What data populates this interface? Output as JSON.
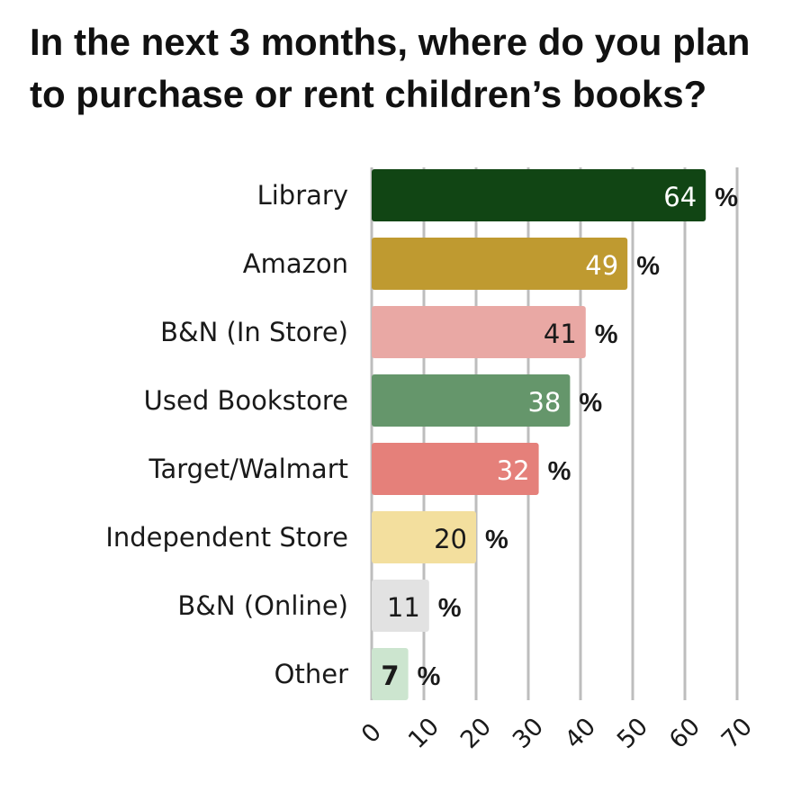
{
  "chart_data": {
    "type": "bar",
    "orientation": "horizontal",
    "title": "In the next 3 months, where do you plan to purchase or rent children’s books?",
    "categories": [
      "Library",
      "Amazon",
      "B&N (In Store)",
      "Used Bookstore",
      "Target/Walmart",
      "Independent Store",
      "B&N (Online)",
      "Other"
    ],
    "values": [
      64,
      49,
      41,
      38,
      32,
      20,
      11,
      7
    ],
    "value_suffix": "%",
    "colors": [
      "#114514",
      "#bf9a30",
      "#e9a8a4",
      "#65966b",
      "#e5807a",
      "#f3df9e",
      "#e2e2e2",
      "#cce5cf"
    ],
    "label_colors": [
      "#ffffff",
      "#ffffff",
      "#1a1a1a",
      "#ffffff",
      "#ffffff",
      "#1a1a1a",
      "#1a1a1a",
      "#1a1a1a"
    ],
    "bold_value_indices": [
      7
    ],
    "xlim": [
      0,
      70
    ],
    "xticks": [
      "0",
      "10",
      "20",
      "30",
      "40",
      "50",
      "60",
      "70"
    ],
    "grid": true,
    "legend": "none"
  }
}
